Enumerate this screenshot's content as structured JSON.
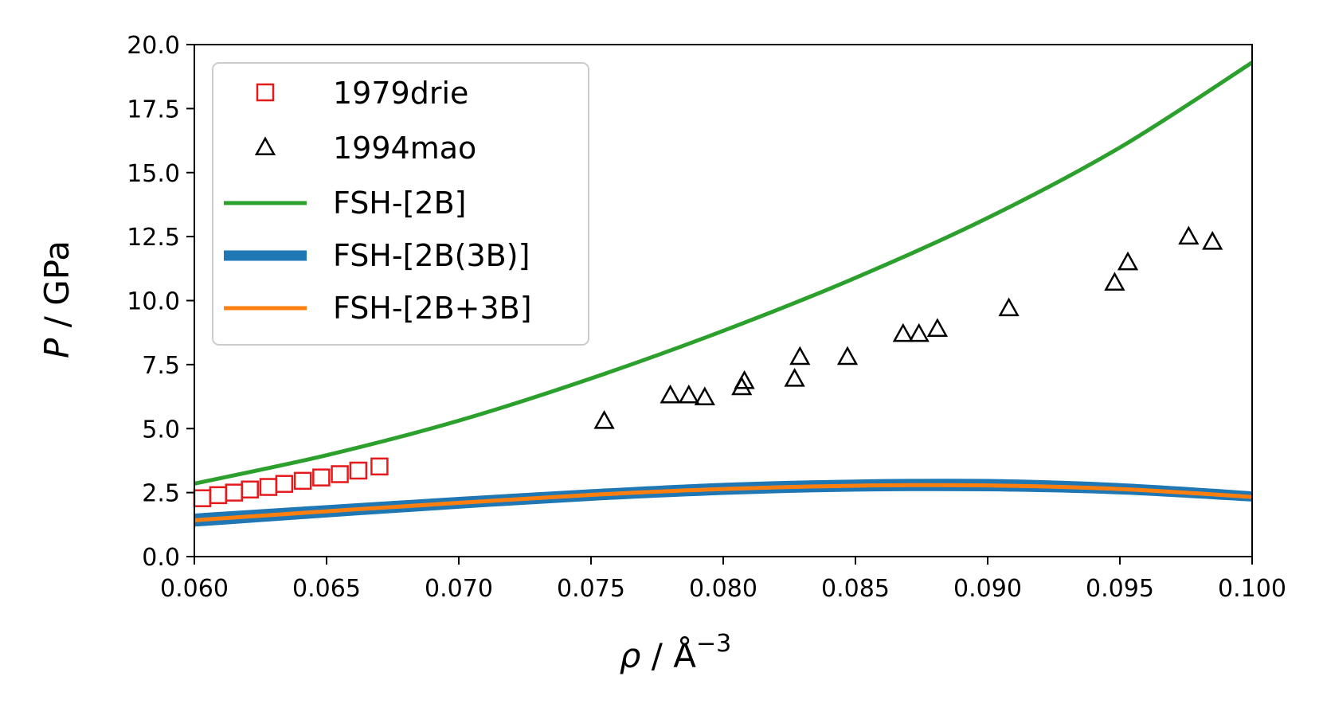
{
  "chart_data": {
    "type": "line",
    "title": "",
    "xlabel_symbol": "ρ",
    "xlabel_unit": " / Å",
    "xlabel_exponent": "−3",
    "ylabel_symbol": "P",
    "ylabel_unit": " / GPa",
    "xlim": [
      0.06,
      0.1
    ],
    "ylim": [
      0.0,
      20.0
    ],
    "xticks": [
      0.06,
      0.065,
      0.07,
      0.075,
      0.08,
      0.085,
      0.09,
      0.095,
      0.1
    ],
    "xtick_labels": [
      "0.060",
      "0.065",
      "0.070",
      "0.075",
      "0.080",
      "0.085",
      "0.090",
      "0.095",
      "0.100"
    ],
    "yticks": [
      0.0,
      2.5,
      5.0,
      7.5,
      10.0,
      12.5,
      15.0,
      17.5,
      20.0
    ],
    "ytick_labels": [
      "0.0",
      "2.5",
      "5.0",
      "7.5",
      "10.0",
      "12.5",
      "15.0",
      "17.5",
      "20.0"
    ],
    "grid": false,
    "legend_position": "upper-left",
    "series": [
      {
        "name": "1979drie",
        "kind": "scatter",
        "marker": "square",
        "color": "#e41a1c",
        "x": [
          0.0603,
          0.0609,
          0.0615,
          0.0621,
          0.0628,
          0.0634,
          0.0641,
          0.0648,
          0.0655,
          0.0662,
          0.067
        ],
        "y": [
          2.28,
          2.4,
          2.5,
          2.62,
          2.72,
          2.84,
          2.96,
          3.09,
          3.22,
          3.36,
          3.52
        ]
      },
      {
        "name": "1994mao",
        "kind": "scatter",
        "marker": "triangle",
        "color": "#000000",
        "x": [
          0.0755,
          0.078,
          0.0787,
          0.0793,
          0.0807,
          0.0808,
          0.0827,
          0.0829,
          0.0847,
          0.0868,
          0.0874,
          0.0881,
          0.0908,
          0.0948,
          0.0953,
          0.0976,
          0.0985
        ],
        "y": [
          5.3,
          6.3,
          6.3,
          6.22,
          6.62,
          6.86,
          6.95,
          7.8,
          7.8,
          8.7,
          8.7,
          8.9,
          9.7,
          10.7,
          11.5,
          12.5,
          12.3
        ]
      },
      {
        "name": "FSH-[2B]",
        "kind": "line",
        "color": "#2ca02c",
        "width": 5,
        "x": [
          0.06,
          0.065,
          0.07,
          0.075,
          0.08,
          0.085,
          0.09,
          0.095,
          0.1
        ],
        "y": [
          2.85,
          3.96,
          5.31,
          6.96,
          8.82,
          10.89,
          13.23,
          15.98,
          19.3
        ]
      },
      {
        "name": "FSH-[2B(3B)]",
        "kind": "band",
        "color": "#1f77b4",
        "width": 13,
        "x": [
          0.06,
          0.065,
          0.07,
          0.075,
          0.08,
          0.085,
          0.09,
          0.095,
          0.1
        ],
        "y_upper": [
          1.65,
          1.98,
          2.3,
          2.6,
          2.85,
          2.98,
          3.0,
          2.84,
          2.52
        ],
        "y_lower": [
          1.2,
          1.56,
          1.9,
          2.21,
          2.44,
          2.57,
          2.58,
          2.46,
          2.18
        ]
      },
      {
        "name": "FSH-[2B+3B]",
        "kind": "line",
        "color": "#ff7f0e",
        "width": 5,
        "x": [
          0.06,
          0.065,
          0.07,
          0.075,
          0.08,
          0.085,
          0.09,
          0.095,
          0.1
        ],
        "y": [
          1.42,
          1.77,
          2.1,
          2.41,
          2.64,
          2.77,
          2.78,
          2.64,
          2.33
        ]
      }
    ]
  }
}
